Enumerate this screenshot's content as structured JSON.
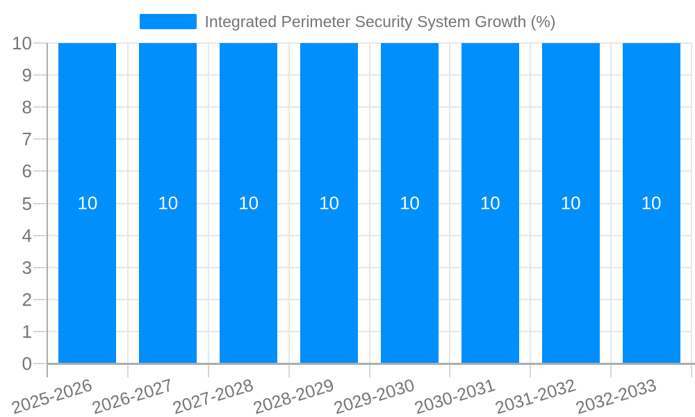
{
  "legend": {
    "label": "Integrated Perimeter Security System Growth (%)",
    "swatch_color": "#008FFB"
  },
  "chart_data": {
    "type": "bar",
    "title": "Integrated Perimeter Security System Growth (%)",
    "categories": [
      "2025-2026",
      "2026-2027",
      "2027-2028",
      "2028-2029",
      "2029-2030",
      "2030-2031",
      "2031-2032",
      "2032-2033"
    ],
    "series": [
      {
        "name": "Integrated Perimeter Security System Growth (%)",
        "values": [
          10,
          10,
          10,
          10,
          10,
          10,
          10,
          10
        ]
      }
    ],
    "values": [
      10,
      10,
      10,
      10,
      10,
      10,
      10,
      10
    ],
    "bar_value_labels": [
      "10",
      "10",
      "10",
      "10",
      "10",
      "10",
      "10",
      "10"
    ],
    "xlabel": "",
    "ylabel": "",
    "ylim": [
      0,
      10
    ],
    "yticks": [
      0,
      1,
      2,
      3,
      4,
      5,
      6,
      7,
      8,
      9,
      10
    ],
    "grid": true,
    "legend_position": "top",
    "x_label_rotation_deg": -17,
    "colors": {
      "bar": "#008FFB",
      "bar_label": "#FFFFFF",
      "axis_text": "#757575",
      "gridline": "#E7E7E7",
      "tick": "#D6D6D6",
      "axis_line": "#ACACAC",
      "background": "#FFFFFF"
    }
  }
}
